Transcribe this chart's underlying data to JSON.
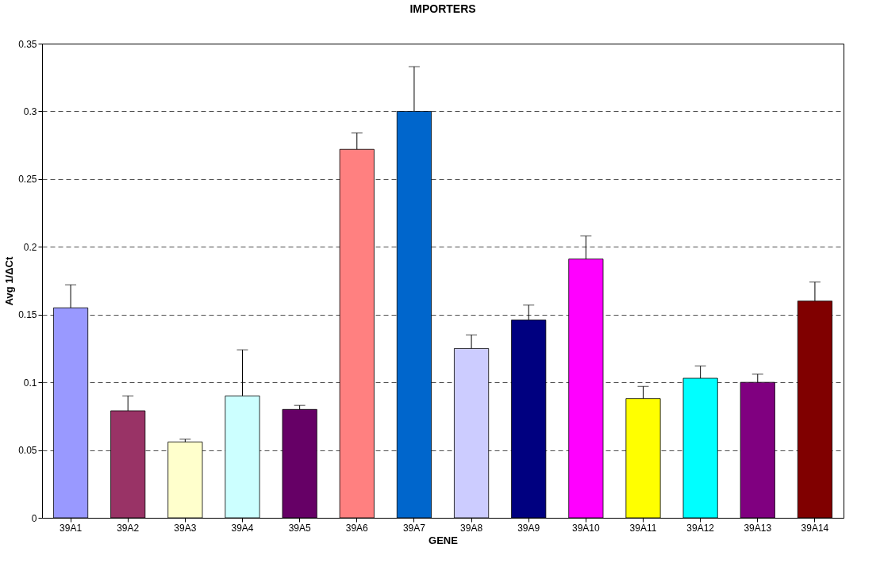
{
  "chart_data": {
    "type": "bar",
    "title": "IMPORTERS",
    "xlabel": "GENE",
    "ylabel": "Avg 1/ΔCt",
    "categories": [
      "39A1",
      "39A2",
      "39A3",
      "39A4",
      "39A5",
      "39A6",
      "39A7",
      "39A8",
      "39A9",
      "39A10",
      "39A11",
      "39A12",
      "39A13",
      "39A14"
    ],
    "values": [
      0.155,
      0.079,
      0.056,
      0.09,
      0.08,
      0.272,
      0.3,
      0.125,
      0.146,
      0.191,
      0.088,
      0.103,
      0.1,
      0.16
    ],
    "colors": [
      "#9999ff",
      "#993366",
      "#ffffcc",
      "#ccffff",
      "#660066",
      "#ff8080",
      "#0066cc",
      "#ccccff",
      "#000080",
      "#ff00ff",
      "#ffff00",
      "#00ffff",
      "#800080",
      "#800000"
    ],
    "errors": [
      [
        0.155,
        0.172
      ],
      [
        0.079,
        0.09
      ],
      [
        0.056,
        0.058
      ],
      [
        0.09,
        0.124
      ],
      [
        0.08,
        0.083
      ],
      [
        0.272,
        0.284
      ],
      [
        0.3,
        0.333
      ],
      [
        0.125,
        0.135
      ],
      [
        0.146,
        0.157
      ],
      [
        0.191,
        0.208
      ],
      [
        0.088,
        0.097
      ],
      [
        0.103,
        0.112
      ],
      [
        0.1,
        0.106
      ],
      [
        0.16,
        0.174
      ]
    ],
    "ylim": [
      0,
      0.35
    ],
    "yticks": [
      0,
      0.05,
      0.1,
      0.15,
      0.2,
      0.25,
      0.3,
      0.35
    ],
    "grid": "y",
    "legend": false
  }
}
